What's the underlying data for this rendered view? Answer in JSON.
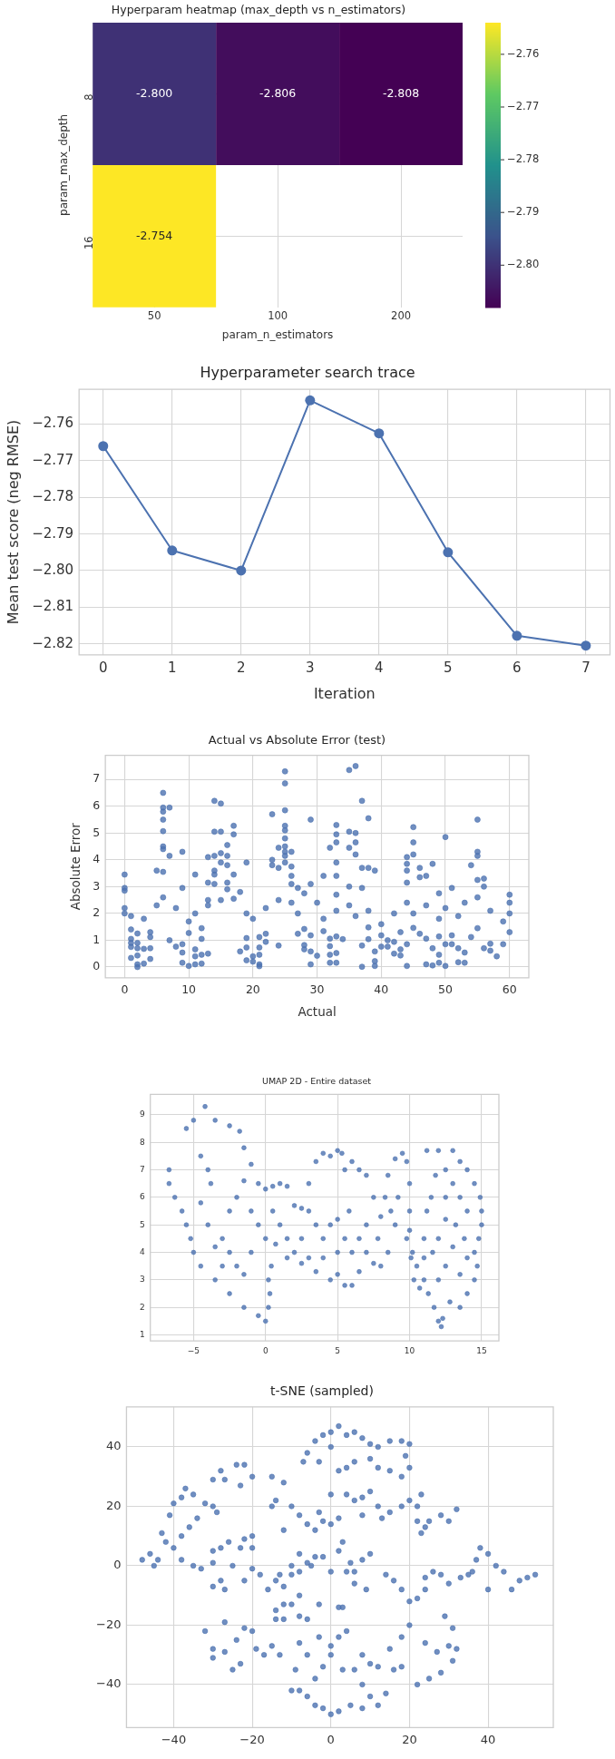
{
  "chart_data": [
    {
      "type": "heatmap",
      "title": "Hyperparam heatmap (max_depth vs n_estimators)",
      "xlabel": "param_n_estimators",
      "ylabel": "param_max_depth",
      "categories": [
        "50",
        "100",
        "200"
      ],
      "y_categories": [
        "8",
        "16"
      ],
      "cells": [
        [
          -2.8,
          -2.806,
          -2.808
        ],
        [
          -2.754,
          null,
          null
        ]
      ],
      "cell_labels": [
        [
          "-2.800",
          "-2.806",
          "-2.808"
        ],
        [
          "-2.754",
          null,
          null
        ]
      ],
      "clim": [
        -2.808,
        -2.754
      ],
      "cticks": [
        -2.76,
        -2.77,
        -2.78,
        -2.79,
        {
          "value": -2.8,
          "label": "−2.80"
        }
      ],
      "grid": true
    },
    {
      "type": "line",
      "title": "Hyperparameter search trace",
      "xlabel": "Iteration",
      "ylabel": "Mean test score (neg RMSE)",
      "x": [
        0,
        1,
        2,
        3,
        4,
        5,
        6,
        7
      ],
      "series": [
        {
          "color": "#4c72b0",
          "values": [
            -2.766,
            -2.7945,
            -2.8,
            -2.7535,
            -2.7625,
            -2.795,
            -2.8178,
            -2.8205
          ]
        }
      ],
      "xlim": [
        -0.35,
        7.35
      ],
      "ylim": [
        -2.823,
        -2.7505
      ],
      "xticks": [
        0,
        1,
        2,
        3,
        4,
        5,
        6,
        7
      ],
      "yticks": [
        -2.82,
        -2.81,
        {
          "value": -2.8,
          "label": "−2.80"
        },
        -2.79,
        -2.78,
        -2.77,
        -2.76
      ],
      "grid": true,
      "marker": "circle",
      "line_style": "solid"
    },
    {
      "type": "scatter",
      "title": "Actual vs Absolute Error (test)",
      "xlabel": "Actual",
      "ylabel": "Absolute Error",
      "color": "#4c72b0",
      "x": [
        0,
        0,
        0,
        6,
        6,
        6,
        6,
        6,
        6,
        6,
        6,
        7,
        7,
        9,
        9,
        5,
        14,
        15,
        14,
        15,
        17,
        17,
        16,
        13,
        14,
        15,
        16,
        16,
        11,
        14,
        14,
        15,
        19,
        17,
        13,
        14,
        16,
        18,
        13,
        17,
        23,
        25,
        25,
        25,
        25,
        25,
        25,
        25,
        25,
        25,
        25,
        24,
        23,
        23,
        24,
        26,
        26,
        26,
        26,
        29,
        29,
        28,
        27,
        31,
        33,
        33,
        33,
        33,
        33,
        33,
        35,
        36,
        35,
        36,
        36,
        36,
        37,
        38,
        32,
        35,
        35,
        37,
        38,
        39,
        37,
        45,
        45,
        44,
        44,
        44,
        45,
        46,
        47,
        48,
        50,
        55,
        55,
        55,
        54,
        56,
        55,
        56,
        44,
        46,
        49,
        51,
        60,
        1,
        1,
        1,
        1,
        2,
        2,
        2,
        1,
        2,
        2,
        2,
        3,
        3,
        4,
        4,
        4,
        4,
        7,
        8,
        9,
        9,
        9,
        10,
        10,
        11,
        11,
        11,
        12,
        12,
        12,
        12,
        13,
        18,
        19,
        19,
        19,
        20,
        20,
        21,
        21,
        21,
        21,
        21,
        22,
        22,
        24,
        27,
        28,
        28,
        28,
        29,
        29,
        29,
        30,
        31,
        32,
        32,
        32,
        32,
        33,
        33,
        33,
        34,
        37,
        37,
        38,
        38,
        39,
        39,
        39,
        40,
        40,
        41,
        41,
        42,
        42,
        43,
        43,
        43,
        44,
        44,
        45,
        46,
        47,
        47,
        48,
        48,
        49,
        49,
        49,
        50,
        50,
        51,
        51,
        52,
        52,
        53,
        53,
        54,
        55,
        56,
        57,
        57,
        58,
        59,
        60,
        0,
        0,
        1,
        3,
        5,
        6,
        8,
        10,
        11,
        13,
        15,
        16,
        19,
        20,
        22,
        24,
        26,
        27,
        30,
        31,
        33,
        35,
        36,
        38,
        40,
        42,
        44,
        45,
        47,
        49,
        50,
        52,
        53,
        55,
        57,
        59,
        60,
        60
      ],
      "values": [
        3.45,
        2.95,
        2.85,
        6.5,
        5.95,
        5.8,
        5.5,
        5.07,
        4.5,
        4.4,
        3.55,
        5.95,
        4.15,
        4.3,
        2.95,
        3.6,
        6.2,
        6.1,
        5.05,
        5.05,
        5.27,
        4.95,
        4.55,
        4.1,
        4.15,
        4.25,
        4.15,
        3.8,
        3.45,
        3.6,
        3.45,
        3.9,
        3.9,
        3.45,
        3.15,
        3.1,
        3.15,
        2.8,
        2.5,
        2.55,
        5.7,
        7.3,
        6.85,
        5.85,
        5.27,
        5.1,
        4.8,
        4.5,
        4.3,
        4.15,
        3.9,
        4.45,
        4.0,
        3.8,
        3.7,
        4.3,
        3.75,
        3.4,
        3.1,
        5.5,
        3.1,
        2.75,
        2.95,
        3.4,
        5.3,
        4.95,
        4.65,
        3.9,
        3.4,
        2.7,
        7.35,
        7.5,
        5.05,
        5.0,
        4.65,
        4.2,
        6.2,
        5.55,
        4.45,
        4.45,
        3.0,
        3.7,
        3.7,
        3.6,
        2.95,
        5.22,
        4.65,
        4.1,
        3.85,
        3.6,
        4.2,
        3.7,
        3.4,
        3.85,
        4.85,
        5.5,
        4.3,
        4.15,
        3.8,
        3.3,
        3.25,
        3.0,
        3.15,
        3.35,
        2.75,
        2.95,
        2.7,
        1.4,
        1.05,
        0.9,
        0.75,
        1.25,
        0.9,
        0.7,
        0.34,
        0.43,
        0.1,
        0,
        0.13,
        0.68,
        1.3,
        1.12,
        0.7,
        0.3,
        1.0,
        0.76,
        0.85,
        0.54,
        0.16,
        1.27,
        0.04,
        0.66,
        0.4,
        0.1,
        1.45,
        1.05,
        0.46,
        0.13,
        0.5,
        0.58,
        1.08,
        0.73,
        0.25,
        0.4,
        0.2,
        1.12,
        0.73,
        0.46,
        0.1,
        0.03,
        1.24,
        0.94,
        0.8,
        1.24,
        1.42,
        0.82,
        0.66,
        1.18,
        0.58,
        0.1,
        0.42,
        1.34,
        1.06,
        0.78,
        0.46,
        0.16,
        1.14,
        0.52,
        0.16,
        1.04,
        0.8,
        0.01,
        1.48,
        1.04,
        0.58,
        0.22,
        0.04,
        1.18,
        0.76,
        1.0,
        0.76,
        0.94,
        0.5,
        1.3,
        0.66,
        0.43,
        0.85,
        0.04,
        1.46,
        1.24,
        1.06,
        0.1,
        0.7,
        0.06,
        1.14,
        0.46,
        0.16,
        0.85,
        0.04,
        1.18,
        0.85,
        0.7,
        0.18,
        0.54,
        0.16,
        1.12,
        1.45,
        0.7,
        0.61,
        0.87,
        0.4,
        0.85,
        1.3,
        2.0,
        2.2,
        1.9,
        1.8,
        2.3,
        2.6,
        2.2,
        1.7,
        2.0,
        2.3,
        2.5,
        2.9,
        2.0,
        1.8,
        2.2,
        2.5,
        2.4,
        2.0,
        2.4,
        1.8,
        2.1,
        2.3,
        1.9,
        2.1,
        1.6,
        2.0,
        2.4,
        2.0,
        2.3,
        1.8,
        2.2,
        1.9,
        2.4,
        2.6,
        2.1,
        1.7,
        2.0,
        2.4
      ],
      "xlim": [
        -3,
        63
      ],
      "ylim": [
        -0.4,
        7.9
      ],
      "xticks": [
        0,
        10,
        20,
        30,
        40,
        50,
        60
      ],
      "yticks": [
        0,
        1,
        2,
        3,
        4,
        5,
        6,
        7
      ],
      "grid": true,
      "marker": "circle"
    },
    {
      "type": "scatter",
      "title": "UMAP 2D - Entire dataset",
      "color": "#4c72b0",
      "x": [
        -6.7,
        -5.5,
        -5,
        -4.2,
        -3.5,
        -2.5,
        -1.8,
        -1.5,
        -1,
        -0.5,
        -6.7,
        -6.3,
        -5.8,
        -5.5,
        -5.2,
        -5,
        -4.5,
        -3.5,
        -2.5,
        -1.5,
        -0.5,
        0,
        0.2,
        0.3,
        0.2,
        0.4,
        -4.5,
        -4,
        -3.8,
        -4.5,
        -4,
        -3,
        -2.5,
        -2,
        -3,
        -3.5,
        -2.5,
        -2,
        -1.5,
        -1,
        -0.5,
        0,
        -1,
        -1.5,
        0,
        0.5,
        1,
        1.5,
        0.5,
        1,
        1.5,
        2,
        2.5,
        1.5,
        2.5,
        2.5,
        2,
        0.7,
        3,
        3.5,
        4,
        4.5,
        5,
        5.3,
        5.5,
        6,
        6.5,
        7,
        3,
        3.5,
        4,
        4.5,
        5,
        5.5,
        5.8,
        6,
        6.5,
        7,
        7,
        7.5,
        8,
        8.5,
        8.3,
        8.5,
        9,
        9.5,
        9.8,
        10,
        10,
        9.8,
        10.2,
        10.5,
        9,
        8.7,
        4.5,
        5,
        5.5,
        6,
        6.5,
        5,
        4,
        3,
        3.5,
        7.8,
        8.0,
        7.5,
        9.2,
        10.7,
        10.3,
        10,
        10.1,
        11.2,
        12,
        13,
        13.5,
        14,
        14.5,
        14.9,
        15,
        15,
        14.8,
        14.5,
        14.7,
        14.5,
        14,
        13.5,
        12.8,
        12.3,
        12.2,
        12,
        11.7,
        11.3,
        11,
        11,
        11,
        11.2,
        11.5,
        11.8,
        12.5,
        12.5,
        13,
        13.5,
        13.2,
        12.5,
        12,
        13,
        13.8,
        14,
        12.5,
        13.5,
        12,
        14,
        11.6
      ],
      "values": [
        7.0,
        8.5,
        8.8,
        9.3,
        8.8,
        8.6,
        8.4,
        7.8,
        7.2,
        6.5,
        6.5,
        6,
        5.5,
        5.0,
        4.5,
        4.0,
        3.5,
        3,
        2.5,
        2,
        1.7,
        1.5,
        2,
        2.5,
        3.0,
        3.5,
        7.5,
        7,
        6.5,
        5.8,
        5,
        4.5,
        4,
        3.5,
        3.5,
        4.2,
        5.5,
        6,
        6.6,
        5.5,
        5,
        4.5,
        4,
        3.2,
        6.3,
        6.4,
        6.5,
        6.4,
        5.5,
        5,
        4.5,
        5.7,
        5.6,
        3.8,
        4.5,
        3.6,
        4.0,
        4.3,
        6.5,
        7.3,
        7.6,
        7.5,
        7.7,
        7.6,
        7.0,
        7.3,
        7.0,
        6.8,
        5.5,
        5.0,
        4.5,
        5.0,
        5.2,
        4.5,
        5.5,
        4.0,
        4.5,
        5.0,
        4.0,
        3.6,
        3.5,
        4.0,
        6.0,
        6.8,
        7.4,
        7.6,
        7.3,
        6.5,
        5.5,
        4.5,
        4.0,
        3.5,
        5.0,
        5.5,
        3.0,
        3.2,
        2.8,
        2.8,
        3.3,
        4.0,
        3.8,
        3.8,
        3.3,
        4.5,
        5.3,
        6.0,
        6.0,
        2.7,
        3.0,
        4.8,
        3.8,
        7.7,
        7.7,
        7.7,
        7.3,
        7.0,
        6.5,
        6.0,
        5.5,
        5,
        4.5,
        4,
        3.5,
        3.0,
        2.5,
        2.0,
        2.2,
        1.6,
        1.3,
        1.5,
        2.0,
        2.5,
        3.0,
        3.8,
        4.5,
        5.5,
        6.0,
        6.8,
        7.0,
        6.0,
        6.5,
        6.0,
        5.0,
        5.2,
        4.5,
        4.2,
        4.5,
        5.5,
        3.5,
        3.2,
        3.0,
        3.8,
        4.0
      ],
      "xlim": [
        -8,
        16.2
      ],
      "ylim": [
        0.78,
        9.74
      ],
      "xticks": [
        -5,
        0,
        5,
        10,
        15
      ],
      "yticks": [
        1,
        2,
        3,
        4,
        5,
        6,
        7,
        8,
        9
      ],
      "grid": true,
      "marker": "circle"
    },
    {
      "type": "scatter",
      "title": "t-SNE (sampled)",
      "color": "#4c72b0",
      "x": [
        -48,
        -46,
        -45,
        -44,
        -43,
        -42,
        -41,
        -40,
        -38,
        -37,
        -35,
        -34,
        -32,
        -30,
        -28,
        -27,
        -24,
        -22,
        -20,
        -23,
        -29,
        -30,
        -36,
        -38,
        -40,
        -38,
        -35,
        -33,
        -30,
        -28,
        -26,
        -22,
        -20,
        -23,
        -20,
        -25,
        -30,
        -15,
        -12,
        -14,
        -10,
        -8,
        -6,
        -4,
        -2,
        0,
        2,
        -12,
        -15,
        -3,
        -6,
        -4,
        -2,
        -7,
        -3,
        0,
        0,
        2,
        4,
        6,
        8,
        10,
        12,
        15,
        18,
        20,
        19,
        20,
        18,
        15,
        12,
        10,
        6,
        4,
        2,
        4,
        6,
        8,
        10,
        12,
        8,
        13,
        15,
        18,
        20,
        22,
        23,
        25,
        22,
        28,
        32,
        30,
        23,
        24,
        0,
        3,
        2,
        -2,
        -4,
        -6,
        -8,
        -10,
        -8,
        -5,
        5,
        8,
        10,
        4,
        0,
        6,
        -30,
        -28,
        -27,
        -22,
        -20,
        -18,
        -16,
        -14,
        -13,
        -12,
        -10,
        -8,
        -10,
        -12,
        -14,
        -14,
        -12,
        -8,
        -6,
        -3,
        2,
        3,
        6,
        9,
        14,
        16,
        18,
        20,
        22,
        24,
        24,
        26,
        28,
        30,
        33,
        35,
        37,
        38,
        40,
        42,
        40,
        44,
        46,
        48,
        50,
        52,
        36,
        -32,
        -30,
        -30,
        -27,
        -27,
        -25,
        -23,
        -24,
        -22,
        -20,
        -19,
        -17,
        -15,
        -13,
        -8,
        -6,
        -9,
        -8,
        -10,
        -6,
        -4,
        -2,
        0,
        2,
        5,
        8,
        12,
        -4,
        -2,
        0,
        0,
        2,
        -3,
        4,
        3,
        6,
        8,
        10,
        12,
        8,
        10,
        14,
        16,
        18,
        15,
        18,
        20,
        24,
        27,
        30,
        32,
        31,
        28,
        25,
        22,
        29,
        31
      ],
      "values": [
        2,
        4,
        0,
        2,
        11,
        8,
        17,
        21,
        23,
        26,
        24,
        16,
        21,
        29,
        32,
        29,
        34,
        34,
        30,
        27,
        18,
        20,
        13,
        10,
        6,
        2,
        0,
        -1,
        5,
        6,
        8,
        9,
        10,
        6,
        6,
        0,
        1,
        30,
        28,
        22,
        20,
        17,
        14,
        12,
        15,
        14,
        16,
        12,
        20,
        18,
        38,
        42,
        44,
        35,
        35,
        40,
        45,
        47,
        44,
        45,
        43,
        41,
        40,
        42,
        42,
        41,
        37,
        33,
        30,
        32,
        33,
        36,
        35,
        33,
        32,
        24,
        22,
        23,
        25,
        20,
        17,
        16,
        18,
        20,
        22,
        20,
        24,
        15,
        15,
        17,
        19,
        15,
        11,
        13,
        24,
        8,
        5,
        3,
        3,
        1,
        4,
        0,
        -2,
        0,
        1,
        2,
        4,
        -2,
        -2,
        -2,
        -7,
        -5,
        -8,
        -5,
        -1,
        -3,
        -8,
        -5,
        -3,
        -7,
        -3,
        -10,
        -13,
        -13,
        -15,
        -18,
        -18,
        -17,
        -18,
        -13,
        -14,
        -14,
        -6,
        -8,
        -3,
        -5,
        -8,
        -12,
        -11,
        -8,
        -4,
        -2,
        -3,
        -6,
        -4,
        -3,
        2,
        6,
        4,
        0,
        -8,
        -2,
        -8,
        -5,
        -4,
        -3,
        -2,
        -22,
        -28,
        -31,
        -19,
        -29,
        -35,
        -33,
        -25,
        -21,
        -22,
        -28,
        -30,
        -27,
        -30,
        -26,
        -30,
        -35,
        -42,
        -42,
        -44,
        -47,
        -48,
        -50,
        -49,
        -47,
        -48,
        -47,
        -38,
        -34,
        -30,
        -27,
        -24,
        -24,
        -22,
        -35,
        -35,
        -30,
        -33,
        -34,
        -40,
        -44,
        -43,
        -35,
        -34,
        -28,
        -24,
        -20,
        -26,
        -29,
        -27,
        -28,
        -32,
        -36,
        -38,
        -40,
        -17,
        -21
      ],
      "xlim": [
        -52,
        56.6
      ],
      "ylim": [
        -54.5,
        53.5
      ],
      "xticks": [
        -40,
        -20,
        0,
        20,
        40
      ],
      "yticks": [
        -40,
        -20,
        0,
        20,
        40
      ],
      "grid": true,
      "marker": "circle"
    }
  ]
}
